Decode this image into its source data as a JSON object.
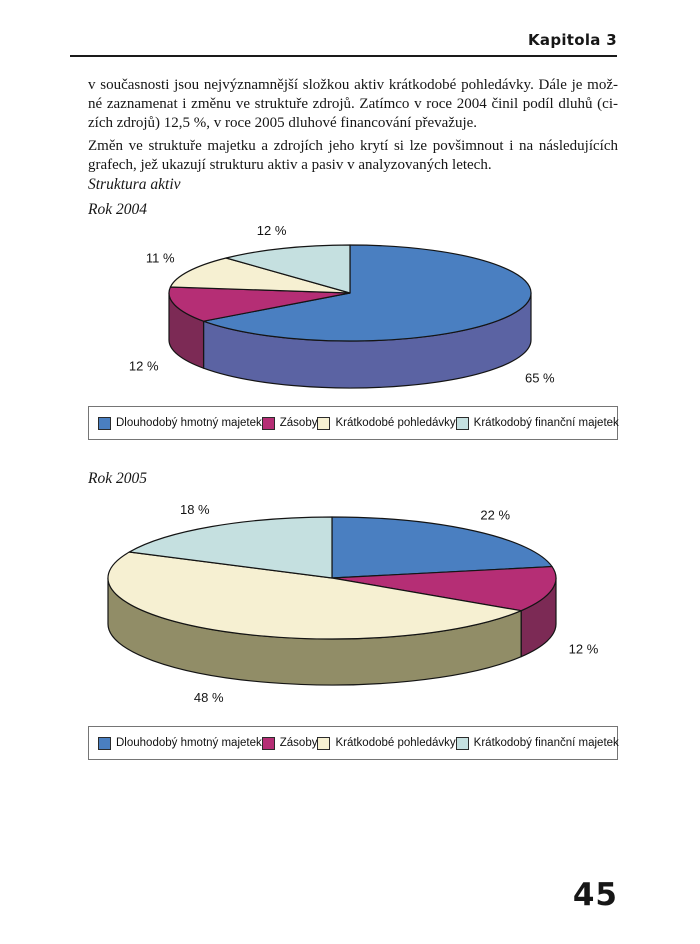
{
  "page": {
    "header": {
      "chapter_label": "Kapitola 3"
    },
    "paragraphs": [
      {
        "lines": [
          "v současnosti jsou nejvýznamnější složkou aktiv krátkodobé pohledávky. Dále je mož-",
          "né zaznamenat i změnu ve struktuře zdrojů. Zatímco v roce 2004 činil podíl dluhů (ci-",
          "zích zdrojů) 12,5 %, v roce 2005 dluhové financování převažuje."
        ]
      },
      {
        "lines": [
          "Změn ve struktuře majetku a zdrojích jeho krytí si lze povšimnout i na následujících",
          "grafech, jež ukazují strukturu aktiv a pasiv v analyzovaných letech."
        ]
      }
    ],
    "section_label": "Struktura aktiv",
    "page_number": "45"
  },
  "chart_data": [
    {
      "type": "pie",
      "style": "3d",
      "title": "Rok 2004",
      "labels": [
        "Dlouhodobý hmotný majetek",
        "Zásoby",
        "Krátkodobé pohledávky",
        "Krátkodobý finanční majetek"
      ],
      "values": [
        65,
        12,
        11,
        12
      ],
      "value_labels": [
        "65 %",
        "12 %",
        "11 %",
        "12 %"
      ],
      "colors": [
        "#4a7fc1",
        "#b52e75",
        "#f6f0d2",
        "#c5e0e0"
      ],
      "side_colors": [
        "#5b63a3",
        "#7c2a55",
        "#918d67",
        "#9fc0c0"
      ],
      "start_angle": "top",
      "direction": "clockwise",
      "legend_position": "bottom"
    },
    {
      "type": "pie",
      "style": "3d",
      "title": "Rok 2005",
      "labels": [
        "Dlouhodobý hmotný majetek",
        "Zásoby",
        "Krátkodobé pohledávky",
        "Krátkodobý finanční majetek"
      ],
      "values": [
        22,
        12,
        48,
        18
      ],
      "value_labels": [
        "22 %",
        "12 %",
        "48 %",
        "18 %"
      ],
      "colors": [
        "#4a7fc1",
        "#b52e75",
        "#f6f0d2",
        "#c5e0e0"
      ],
      "side_colors": [
        "#5b63a3",
        "#7c2a55",
        "#918d67",
        "#9fc0c0"
      ],
      "start_angle": "top",
      "direction": "clockwise",
      "legend_position": "bottom"
    }
  ]
}
